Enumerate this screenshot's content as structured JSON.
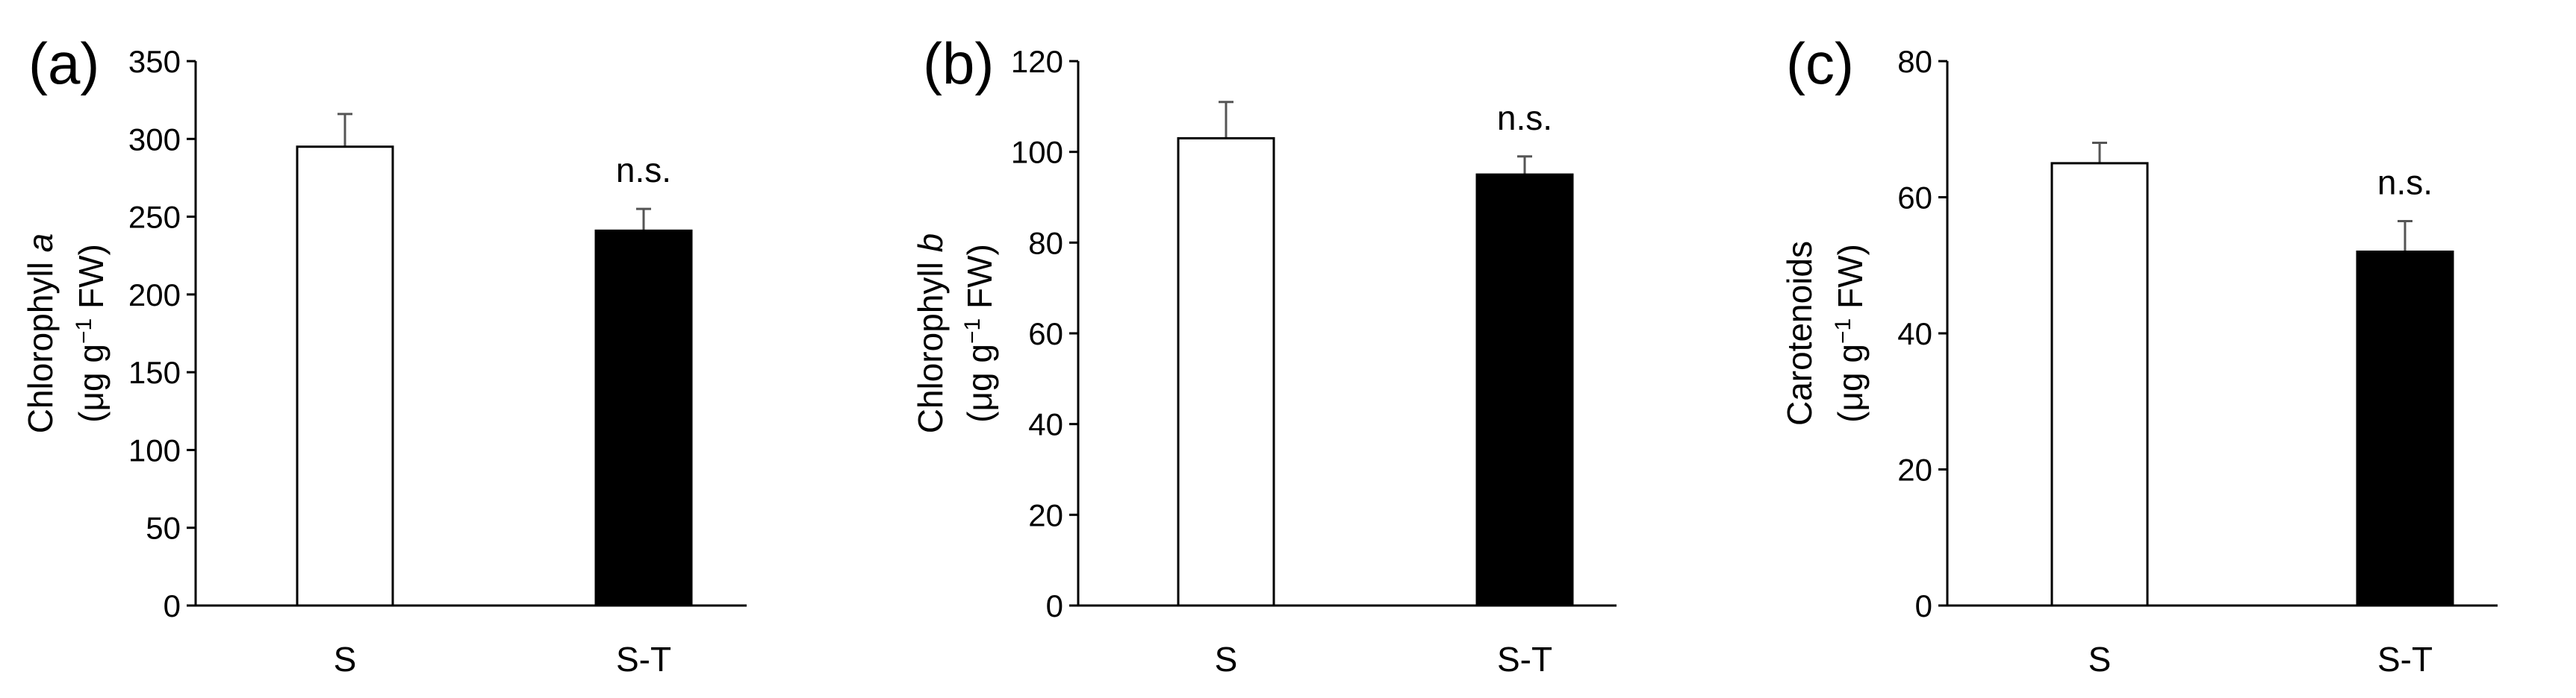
{
  "chart_data": [
    {
      "type": "bar",
      "panel": "(a)",
      "categories": [
        "S",
        "S-T"
      ],
      "values": [
        295,
        241
      ],
      "errors": [
        21,
        14
      ],
      "bar_colors": [
        "#ffffff",
        "#000000"
      ],
      "annotations": [
        "",
        "n.s."
      ],
      "ylabel_main": "Chlorophyll ",
      "ylabel_italic": "a",
      "ylabel_unit_pre": "(μg g",
      "ylabel_unit_sup": "−1",
      "ylabel_unit_post": " FW)",
      "ylim": [
        0,
        350
      ],
      "yticks": [
        0,
        50,
        100,
        150,
        200,
        250,
        300,
        350
      ]
    },
    {
      "type": "bar",
      "panel": "(b)",
      "categories": [
        "S",
        "S-T"
      ],
      "values": [
        103,
        95
      ],
      "errors": [
        8,
        4
      ],
      "bar_colors": [
        "#ffffff",
        "#000000"
      ],
      "annotations": [
        "",
        "n.s."
      ],
      "ylabel_main": "Chlorophyll ",
      "ylabel_italic": "b",
      "ylabel_unit_pre": "(μg g",
      "ylabel_unit_sup": "−1",
      "ylabel_unit_post": " FW)",
      "ylim": [
        0,
        120
      ],
      "yticks": [
        0,
        20,
        40,
        60,
        80,
        100,
        120
      ]
    },
    {
      "type": "bar",
      "panel": "(c)",
      "categories": [
        "S",
        "S-T"
      ],
      "values": [
        65,
        52
      ],
      "errors": [
        3,
        4.5
      ],
      "bar_colors": [
        "#ffffff",
        "#000000"
      ],
      "annotations": [
        "",
        "n.s."
      ],
      "ylabel_main": "Carotenoids",
      "ylabel_italic": "",
      "ylabel_unit_pre": "(μg g",
      "ylabel_unit_sup": "−1",
      "ylabel_unit_post": " FW)",
      "ylim": [
        0,
        80
      ],
      "yticks": [
        0,
        20,
        40,
        60,
        80
      ]
    }
  ]
}
